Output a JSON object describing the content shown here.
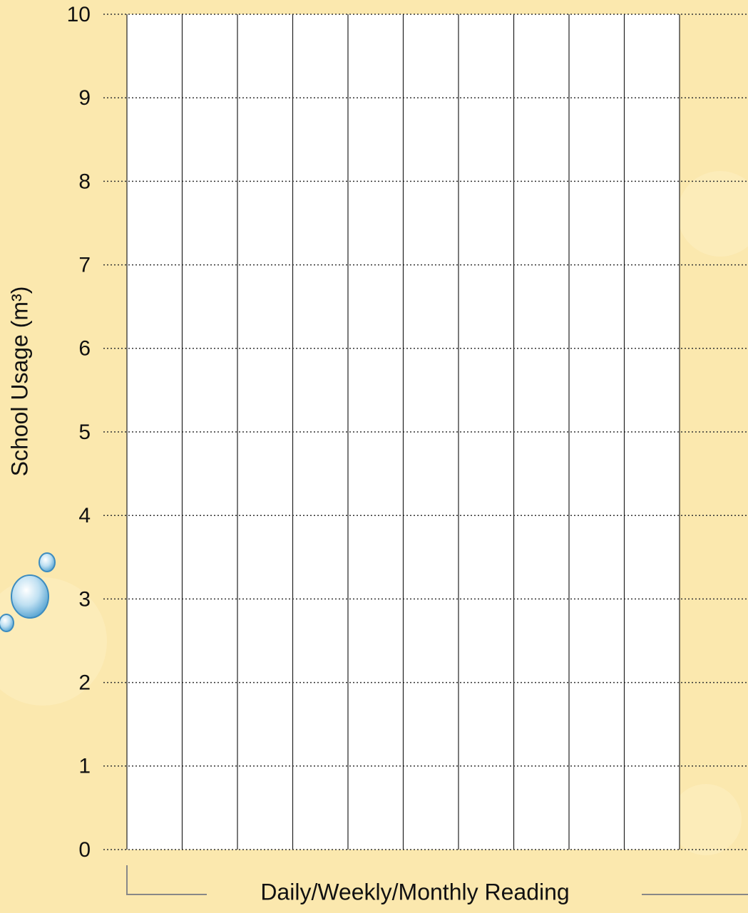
{
  "chart_data": {
    "type": "bar",
    "y_label": "School Usage (m³)",
    "x_label": "Daily/Weekly/Monthly Reading",
    "categories": [
      null,
      null,
      null,
      null,
      null,
      null,
      null,
      null,
      null,
      null
    ],
    "ylim": [
      0,
      10
    ],
    "yticks": [
      0,
      1,
      2,
      3,
      4,
      5,
      6,
      7,
      8,
      9,
      10
    ],
    "grid": true
  }
}
